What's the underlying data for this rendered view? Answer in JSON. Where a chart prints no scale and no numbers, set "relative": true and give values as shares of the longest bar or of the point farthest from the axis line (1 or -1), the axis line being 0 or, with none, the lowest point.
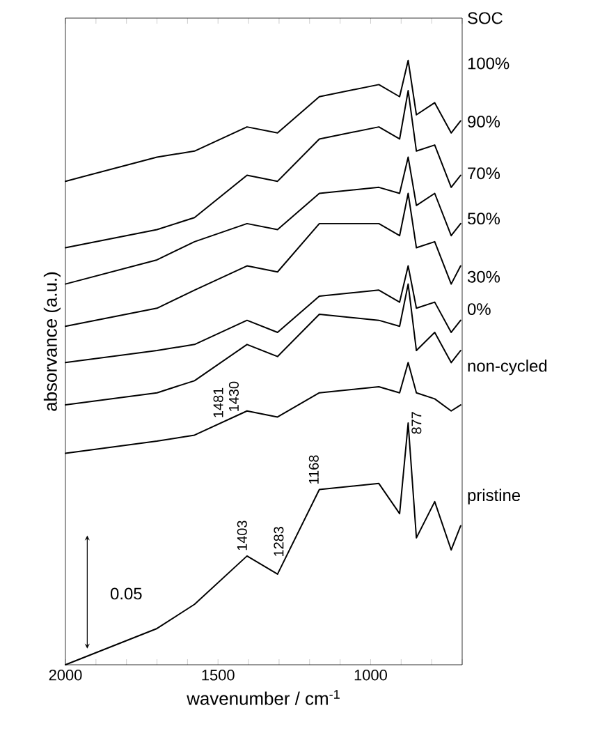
{
  "chart_data": {
    "type": "line",
    "relative": true,
    "xlabel": "wavenumber / cm$^{-1}$",
    "ylabel": "absorvance (a.u.)",
    "legend_title": "SOC",
    "xlim": [
      2000,
      700
    ],
    "xticks": [
      2000,
      {
        "value": 1900,
        "label": null
      },
      {
        "value": 1800,
        "label": null
      },
      {
        "value": 1700,
        "label": null
      },
      {
        "value": 1600,
        "label": null
      },
      1500,
      {
        "value": 1400,
        "label": null
      },
      {
        "value": 1300,
        "label": null
      },
      {
        "value": 1200,
        "label": null
      },
      {
        "value": 1100,
        "label": null
      },
      1000,
      {
        "value": 900,
        "label": null
      },
      {
        "value": 800,
        "label": null
      },
      {
        "value": 700,
        "label": null
      }
    ],
    "x": [
      2000,
      1700,
      1577,
      1405,
      1305,
      1168,
      973,
      905,
      877,
      850,
      790,
      736,
      705
    ],
    "series": [
      {
        "name": "100%",
        "color": "#000000",
        "values": [
          0.8,
          0.84,
          0.85,
          0.89,
          0.88,
          0.94,
          0.96,
          0.94,
          1.0,
          0.91,
          0.93,
          0.88,
          0.9
        ]
      },
      {
        "name": "90%",
        "color": "#000000",
        "values": [
          0.69,
          0.72,
          0.74,
          0.81,
          0.8,
          0.87,
          0.89,
          0.87,
          0.95,
          0.85,
          0.86,
          0.79,
          0.81
        ]
      },
      {
        "name": "70%",
        "color": "#000000",
        "values": [
          0.63,
          0.67,
          0.7,
          0.73,
          0.72,
          0.78,
          0.79,
          0.78,
          0.84,
          0.76,
          0.78,
          0.71,
          0.73
        ]
      },
      {
        "name": "50%",
        "color": "#000000",
        "values": [
          0.56,
          0.59,
          0.62,
          0.66,
          0.65,
          0.73,
          0.73,
          0.71,
          0.78,
          0.69,
          0.7,
          0.63,
          0.66
        ]
      },
      {
        "name": "30%",
        "color": "#000000",
        "values": [
          0.5,
          0.52,
          0.53,
          0.57,
          0.55,
          0.61,
          0.62,
          0.6,
          0.66,
          0.59,
          0.6,
          0.55,
          0.57
        ]
      },
      {
        "name": "0%",
        "color": "#000000",
        "values": [
          0.43,
          0.45,
          0.47,
          0.53,
          0.51,
          0.58,
          0.57,
          0.56,
          0.63,
          0.52,
          0.55,
          0.5,
          0.52
        ]
      },
      {
        "name": "non-cycled",
        "color": "#000000",
        "values": [
          0.35,
          0.37,
          0.38,
          0.42,
          0.41,
          0.45,
          0.46,
          0.45,
          0.5,
          0.45,
          0.44,
          0.42,
          0.43
        ]
      },
      {
        "name": "pristine",
        "color": "#000000",
        "values": [
          0.0,
          0.06,
          0.1,
          0.18,
          0.15,
          0.29,
          0.3,
          0.25,
          0.4,
          0.21,
          0.27,
          0.19,
          0.23
        ]
      }
    ],
    "annotations": [
      {
        "text": "1481",
        "x": 1481,
        "y": 0.4
      },
      {
        "text": "1430",
        "x": 1430,
        "y": 0.41
      },
      {
        "text": "1403",
        "x": 1403,
        "y": 0.18
      },
      {
        "text": "1283",
        "x": 1283,
        "y": 0.17
      },
      {
        "text": "1168",
        "x": 1168,
        "y": 0.29
      },
      {
        "text": "877",
        "x": 877,
        "y": 0.4
      },
      "0.05"
    ]
  }
}
